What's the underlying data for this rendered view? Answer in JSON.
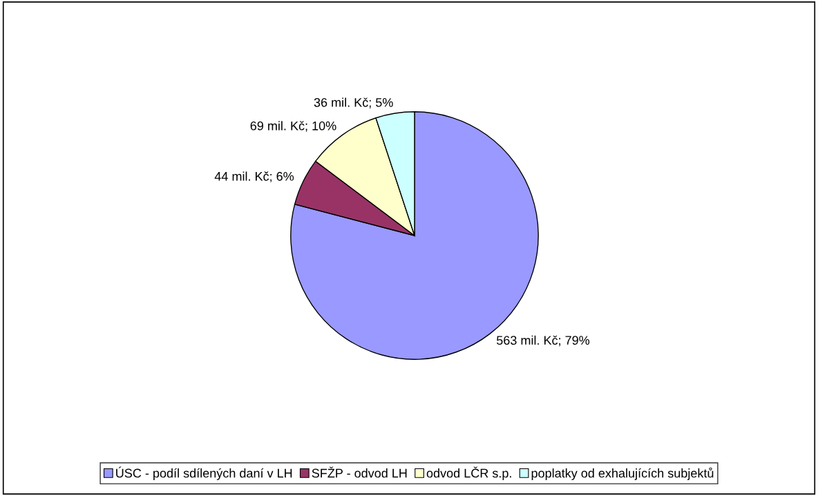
{
  "chart_data": {
    "type": "pie",
    "categories": [
      "ÚSC - podíl sdílených daní v LH",
      "SFŽP - odvod LH",
      "odvod LČR s.p.",
      "poplatky od exhalujících subjektů"
    ],
    "values": [
      563,
      44,
      69,
      36
    ],
    "colors": [
      "#9999ff",
      "#993366",
      "#ffffcc",
      "#ccffff"
    ],
    "value_labels": [
      "563 mil. Kč; 79%",
      "44 mil. Kč; 6%",
      "69 mil. Kč; 10%",
      "36 mil. Kč; 5%"
    ],
    "legend": "bottom"
  }
}
